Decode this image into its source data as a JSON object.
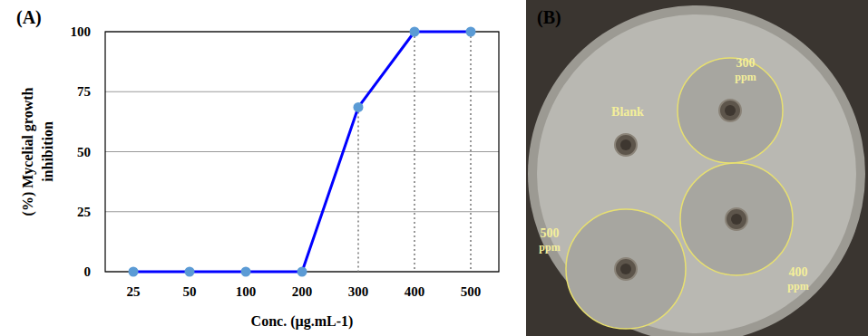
{
  "chart_data": {
    "type": "line",
    "title": "(A)",
    "categories": [
      "25",
      "50",
      "100",
      "200",
      "300",
      "400",
      "500"
    ],
    "series": [
      {
        "name": "Mycelial growth inhibition",
        "color": "#0000ff",
        "marker": "circle",
        "values": [
          0,
          0,
          0,
          0,
          68.5,
          100,
          100
        ]
      }
    ],
    "xlabel": "Conc. (µg.mL-1)",
    "ylabel": [
      "(%) Mycelial growth",
      "inhibition"
    ],
    "ylim": [
      0,
      100
    ],
    "yticks": [
      0,
      25,
      50,
      75,
      100
    ],
    "grid": true
  },
  "photo": {
    "label": "(B)",
    "wells": [
      {
        "lines": [
          "Blank"
        ]
      },
      {
        "lines": [
          "300",
          "ppm"
        ]
      },
      {
        "lines": [
          "400",
          "ppm"
        ]
      },
      {
        "lines": [
          "500",
          "ppm"
        ]
      }
    ]
  }
}
